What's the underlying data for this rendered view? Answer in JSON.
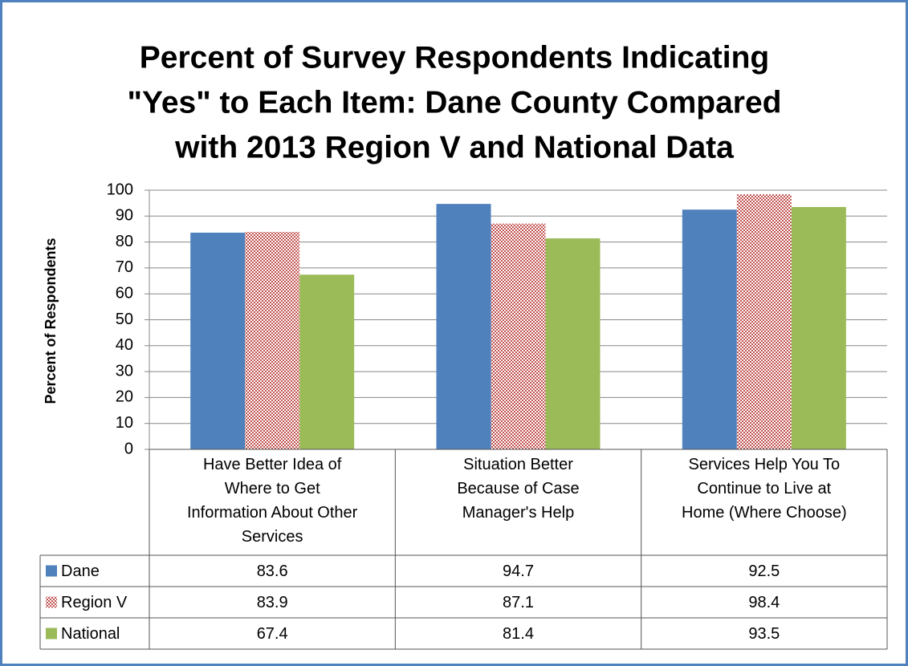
{
  "chart_data": {
    "type": "bar",
    "title": [
      "Percent of Survey Respondents Indicating",
      "\"Yes\" to Each Item:  Dane County Compared",
      "with 2013 Region V and National Data"
    ],
    "y_label": "Percent of Respondents",
    "categories": [
      "Have Better Idea of Where to Get Information About Other Services",
      "Situation Better Because of Case Manager's Help",
      "Services Help You To Continue to Live at Home (Where Choose)"
    ],
    "series": [
      {
        "name": "Dane",
        "color": "#4f81bd",
        "values": [
          83.6,
          94.7,
          92.5
        ]
      },
      {
        "name": "Region V",
        "color": "#c0504d",
        "pattern": "checker",
        "values": [
          83.9,
          87.1,
          98.4
        ]
      },
      {
        "name": "National",
        "color": "#9bbb59",
        "values": [
          67.4,
          81.4,
          93.5
        ]
      }
    ],
    "ylim": [
      0,
      100
    ],
    "yticks": [
      0,
      10,
      20,
      30,
      40,
      50,
      60,
      70,
      80,
      90,
      100
    ],
    "grid": true,
    "data_table": true
  }
}
